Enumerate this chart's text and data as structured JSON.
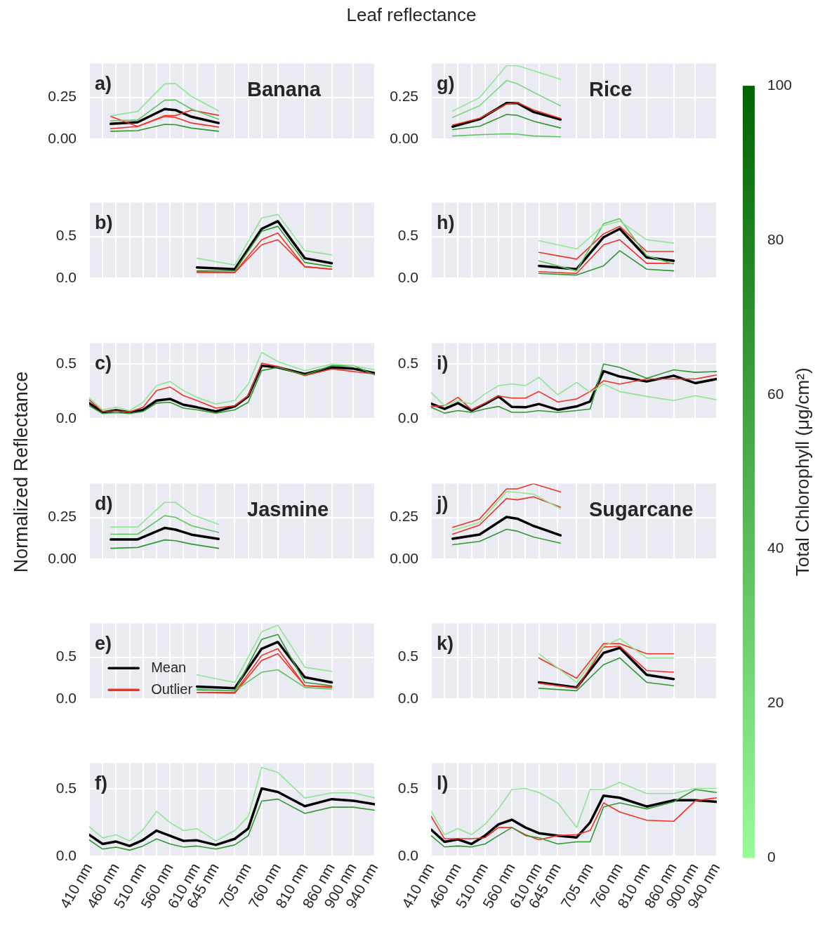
{
  "chart_data": [
    {
      "type": "line",
      "title": "Leaf reflectance",
      "clabel": "Total Chlorophyll (μg/cm²)",
      "clim": [
        0,
        100
      ],
      "cticks": [
        0,
        20,
        40,
        60,
        80,
        100
      ],
      "annotations": [
        "a)",
        "Banana"
      ],
      "xlim": [
        410,
        940
      ],
      "xticks": [
        410,
        435,
        460,
        485,
        510,
        535,
        560,
        585,
        610,
        645,
        680,
        705,
        730,
        760,
        810,
        860,
        900,
        940
      ],
      "ylim": [
        0,
        0.45
      ],
      "yticks": [
        {
          "value": 0,
          "label": "0.00"
        },
        {
          "value": 0.25,
          "label": "0.25"
        }
      ],
      "grid": true,
      "tick_labels": "y",
      "series": [
        {
          "color": "#8ee68e",
          "x": [
            450,
            500,
            550,
            570,
            600,
            650
          ],
          "values": [
            0.14,
            0.166,
            0.33,
            0.332,
            0.255,
            0.17
          ]
        },
        {
          "color": "#5cc45c",
          "x": [
            450,
            500,
            550,
            570,
            600,
            650
          ],
          "values": [
            0.11,
            0.115,
            0.233,
            0.234,
            0.18,
            0.12
          ]
        },
        {
          "color": "#2e9a2e",
          "x": [
            450,
            500,
            550,
            570,
            600,
            650
          ],
          "values": [
            0.048,
            0.052,
            0.089,
            0.087,
            0.067,
            0.048
          ]
        },
        {
          "color": "#f03020",
          "x": [
            450,
            500,
            550,
            570,
            600,
            650
          ],
          "values": [
            0.136,
            0.077,
            0.141,
            0.141,
            0.174,
            0.143
          ]
        },
        {
          "color": "#f03020",
          "x": [
            450,
            500,
            550,
            570,
            600,
            650
          ],
          "values": [
            0.063,
            0.077,
            0.136,
            0.13,
            0.097,
            0.073
          ]
        },
        {
          "color": "#000000",
          "x": [
            450,
            500,
            550,
            570,
            600,
            650
          ],
          "values": [
            0.092,
            0.102,
            0.18,
            0.174,
            0.134,
            0.097
          ]
        }
      ]
    },
    {
      "type": "line",
      "annotations": [
        "b)"
      ],
      "xlim": [
        410,
        940
      ],
      "xticks": [
        410,
        435,
        460,
        485,
        510,
        535,
        560,
        585,
        610,
        645,
        680,
        705,
        730,
        760,
        810,
        860,
        900,
        940
      ],
      "ylim": [
        0,
        0.9
      ],
      "yticks": [
        {
          "value": 0,
          "label": "0.0"
        },
        {
          "value": 0.5,
          "label": "0.5"
        }
      ],
      "grid": true,
      "tick_labels": "y",
      "series": [
        {
          "color": "#8ee68e",
          "x": [
            610,
            680,
            730,
            760,
            810,
            860
          ],
          "values": [
            0.24,
            0.16,
            0.72,
            0.76,
            0.33,
            0.28
          ]
        },
        {
          "color": "#2e9a2e",
          "x": [
            610,
            680,
            730,
            760,
            810,
            860
          ],
          "values": [
            0.09,
            0.09,
            0.56,
            0.62,
            0.19,
            0.14
          ]
        },
        {
          "color": "#f03020",
          "x": [
            610,
            680,
            730,
            760,
            810,
            860
          ],
          "values": [
            0.08,
            0.07,
            0.46,
            0.54,
            0.14,
            0.11
          ]
        },
        {
          "color": "#f03020",
          "x": [
            610,
            680,
            730,
            760,
            810,
            860
          ],
          "values": [
            0.07,
            0.07,
            0.4,
            0.46,
            0.14,
            0.11
          ]
        },
        {
          "color": "#000000",
          "x": [
            610,
            680,
            730,
            760,
            810,
            860
          ],
          "values": [
            0.13,
            0.11,
            0.59,
            0.68,
            0.24,
            0.18
          ]
        }
      ]
    },
    {
      "type": "line",
      "annotations": [
        "c)"
      ],
      "xlim": [
        410,
        940
      ],
      "xticks": [
        410,
        435,
        460,
        485,
        510,
        535,
        560,
        585,
        610,
        645,
        680,
        705,
        730,
        760,
        810,
        860,
        900,
        940
      ],
      "ylim": [
        0,
        0.69
      ],
      "yticks": [
        {
          "value": 0,
          "label": "0.0"
        },
        {
          "value": 0.5,
          "label": "0.5"
        }
      ],
      "grid": true,
      "tick_labels": "y",
      "series": [
        {
          "color": "#8ee68e",
          "x": [
            410,
            435,
            460,
            485,
            510,
            535,
            560,
            585,
            610,
            645,
            680,
            705,
            730,
            760,
            810,
            860,
            900,
            940
          ],
          "values": [
            0.19,
            0.083,
            0.106,
            0.076,
            0.151,
            0.303,
            0.341,
            0.258,
            0.197,
            0.136,
            0.167,
            0.318,
            0.606,
            0.523,
            0.44,
            0.5,
            0.485,
            0.447
          ]
        },
        {
          "color": "#2e9a2e",
          "x": [
            410,
            435,
            460,
            485,
            510,
            535,
            560,
            585,
            610,
            645,
            680,
            705,
            730,
            760,
            810,
            860,
            900,
            940
          ],
          "values": [
            0.121,
            0.049,
            0.058,
            0.049,
            0.068,
            0.144,
            0.151,
            0.099,
            0.083,
            0.053,
            0.083,
            0.151,
            0.44,
            0.47,
            0.401,
            0.485,
            0.485,
            0.401
          ]
        },
        {
          "color": "#f03020",
          "x": [
            410,
            435,
            460,
            485,
            510,
            535,
            560,
            585,
            610,
            645,
            680,
            705,
            730,
            760,
            810,
            860,
            900,
            940
          ],
          "values": [
            0.174,
            0.068,
            0.073,
            0.064,
            0.106,
            0.258,
            0.291,
            0.212,
            0.167,
            0.099,
            0.121,
            0.212,
            0.508,
            0.477,
            0.394,
            0.455,
            0.432,
            0.409
          ]
        },
        {
          "color": "#000000",
          "x": [
            410,
            435,
            460,
            485,
            510,
            535,
            560,
            585,
            610,
            645,
            680,
            705,
            730,
            760,
            810,
            860,
            900,
            940
          ],
          "values": [
            0.144,
            0.06,
            0.079,
            0.06,
            0.083,
            0.167,
            0.182,
            0.129,
            0.106,
            0.068,
            0.114,
            0.205,
            0.485,
            0.47,
            0.409,
            0.47,
            0.458,
            0.417
          ]
        }
      ]
    },
    {
      "type": "line",
      "ylabel": "Normalized Reflectance",
      "annotations": [
        "d)",
        "Jasmine"
      ],
      "xlim": [
        410,
        940
      ],
      "xticks": [
        410,
        435,
        460,
        485,
        510,
        535,
        560,
        585,
        610,
        645,
        680,
        705,
        730,
        760,
        810,
        860,
        900,
        940
      ],
      "ylim": [
        0,
        0.45
      ],
      "yticks": [
        {
          "value": 0,
          "label": "0.00"
        },
        {
          "value": 0.25,
          "label": "0.25"
        }
      ],
      "grid": true,
      "tick_labels": "y",
      "series": [
        {
          "color": "#8ee68e",
          "x": [
            450,
            500,
            550,
            570,
            600,
            650
          ],
          "values": [
            0.192,
            0.192,
            0.339,
            0.339,
            0.268,
            0.208
          ]
        },
        {
          "color": "#5cc45c",
          "x": [
            450,
            500,
            550,
            570,
            600,
            650
          ],
          "values": [
            0.15,
            0.15,
            0.26,
            0.25,
            0.2,
            0.16
          ]
        },
        {
          "color": "#2e9a2e",
          "x": [
            450,
            500,
            550,
            570,
            600,
            650
          ],
          "values": [
            0.066,
            0.071,
            0.116,
            0.111,
            0.091,
            0.066
          ]
        },
        {
          "color": "#000000",
          "x": [
            450,
            500,
            550,
            570,
            600,
            650
          ],
          "values": [
            0.119,
            0.119,
            0.187,
            0.177,
            0.147,
            0.122
          ]
        }
      ]
    },
    {
      "type": "line",
      "annotations": [
        "e)"
      ],
      "legend": "left",
      "xlim": [
        410,
        940
      ],
      "xticks": [
        410,
        435,
        460,
        485,
        510,
        535,
        560,
        585,
        610,
        645,
        680,
        705,
        730,
        760,
        810,
        860,
        900,
        940
      ],
      "ylim": [
        0,
        0.9
      ],
      "yticks": [
        {
          "value": 0,
          "label": "0.0"
        },
        {
          "value": 0.5,
          "label": "0.5"
        }
      ],
      "grid": true,
      "tick_labels": "y",
      "series": [
        {
          "color": "#8ee68e",
          "x": [
            610,
            680,
            730,
            760,
            810,
            860
          ],
          "values": [
            0.29,
            0.2,
            0.8,
            0.88,
            0.38,
            0.33
          ]
        },
        {
          "color": "#5cc45c",
          "x": [
            610,
            680,
            730,
            760,
            810,
            860
          ],
          "values": [
            0.12,
            0.1,
            0.32,
            0.35,
            0.14,
            0.12
          ]
        },
        {
          "color": "#2e9a2e",
          "x": [
            610,
            680,
            730,
            760,
            810,
            860
          ],
          "values": [
            0.11,
            0.1,
            0.71,
            0.77,
            0.2,
            0.16
          ]
        },
        {
          "color": "#f03020",
          "x": [
            610,
            680,
            730,
            760,
            810,
            860
          ],
          "values": [
            0.08,
            0.07,
            0.46,
            0.54,
            0.16,
            0.14
          ]
        },
        {
          "name": "Outlier",
          "color": "#f03020",
          "x": [
            610,
            680,
            730,
            760,
            810,
            860
          ],
          "values": [
            0.08,
            0.08,
            0.52,
            0.6,
            0.16,
            0.15
          ]
        },
        {
          "name": "Mean",
          "color": "#000000",
          "x": [
            610,
            680,
            730,
            760,
            810,
            860
          ],
          "values": [
            0.15,
            0.13,
            0.6,
            0.68,
            0.26,
            0.2
          ]
        }
      ]
    },
    {
      "type": "line",
      "annotations": [
        "f)"
      ],
      "xlim": [
        410,
        940
      ],
      "xticks": [
        {
          "value": 410,
          "label": "410 nm"
        },
        {
          "value": 435,
          "label": null
        },
        {
          "value": 460,
          "label": "460 nm"
        },
        {
          "value": 485,
          "label": null
        },
        {
          "value": 510,
          "label": "510 nm"
        },
        {
          "value": 535,
          "label": null
        },
        {
          "value": 560,
          "label": "560 nm"
        },
        {
          "value": 585,
          "label": null
        },
        {
          "value": 610,
          "label": "610 nm"
        },
        {
          "value": 645,
          "label": "645 nm"
        },
        {
          "value": 680,
          "label": null
        },
        {
          "value": 705,
          "label": "705 nm"
        },
        {
          "value": 730,
          "label": null
        },
        {
          "value": 760,
          "label": "760 nm"
        },
        {
          "value": 810,
          "label": "810 nm"
        },
        {
          "value": 860,
          "label": "860 nm"
        },
        {
          "value": 900,
          "label": "900 nm"
        },
        {
          "value": 940,
          "label": "940 nm"
        }
      ],
      "ylim": [
        0,
        0.69
      ],
      "yticks": [
        {
          "value": 0,
          "label": "0.0"
        },
        {
          "value": 0.5,
          "label": "0.5"
        }
      ],
      "grid": true,
      "series": [
        {
          "color": "#8ee68e",
          "x": [
            410,
            435,
            460,
            485,
            510,
            535,
            560,
            585,
            610,
            645,
            680,
            705,
            730,
            760,
            810,
            860,
            900,
            940
          ],
          "values": [
            0.22,
            0.136,
            0.159,
            0.114,
            0.197,
            0.334,
            0.25,
            0.19,
            0.205,
            0.114,
            0.19,
            0.295,
            0.659,
            0.621,
            0.432,
            0.47,
            0.47,
            0.432
          ]
        },
        {
          "color": "#2e9a2e",
          "x": [
            410,
            435,
            460,
            485,
            510,
            535,
            560,
            585,
            610,
            645,
            680,
            705,
            730,
            760,
            810,
            860,
            900,
            940
          ],
          "values": [
            0.121,
            0.053,
            0.068,
            0.045,
            0.076,
            0.129,
            0.091,
            0.068,
            0.076,
            0.053,
            0.084,
            0.152,
            0.409,
            0.424,
            0.318,
            0.364,
            0.364,
            0.341
          ]
        },
        {
          "color": "#000000",
          "x": [
            410,
            435,
            460,
            485,
            510,
            535,
            560,
            585,
            610,
            645,
            680,
            705,
            730,
            760,
            810,
            860,
            900,
            940
          ],
          "values": [
            0.159,
            0.091,
            0.109,
            0.076,
            0.121,
            0.19,
            0.152,
            0.114,
            0.118,
            0.084,
            0.129,
            0.205,
            0.503,
            0.477,
            0.371,
            0.424,
            0.412,
            0.386
          ]
        }
      ]
    },
    {
      "type": "line",
      "annotations": [
        "g)",
        "Rice"
      ],
      "xlim": [
        410,
        940
      ],
      "xticks": [
        410,
        435,
        460,
        485,
        510,
        535,
        560,
        585,
        610,
        645,
        680,
        705,
        730,
        760,
        810,
        860,
        900,
        940
      ],
      "ylim": [
        0,
        0.45
      ],
      "yticks": [
        {
          "value": 0,
          "label": "0.00"
        },
        {
          "value": 0.25,
          "label": "0.25"
        }
      ],
      "grid": true,
      "tick_labels": "y",
      "series": [
        {
          "color": "#8ee68e",
          "x": [
            450,
            500,
            550,
            570,
            600,
            650
          ],
          "values": [
            0.168,
            0.248,
            0.438,
            0.438,
            0.408,
            0.358
          ]
        },
        {
          "color": "#7ad87a",
          "x": [
            450,
            500,
            550,
            570,
            600,
            650
          ],
          "values": [
            0.13,
            0.2,
            0.35,
            0.33,
            0.28,
            0.2
          ]
        },
        {
          "color": "#2e9a2e",
          "x": [
            450,
            500,
            550,
            570,
            600,
            650
          ],
          "values": [
            0.058,
            0.078,
            0.148,
            0.143,
            0.108,
            0.068
          ]
        },
        {
          "color": "#5cc45c",
          "x": [
            450,
            500,
            550,
            570,
            600,
            650
          ],
          "values": [
            0.02,
            0.028,
            0.033,
            0.031,
            0.02,
            0.015
          ]
        },
        {
          "color": "#f03020",
          "x": [
            450,
            500,
            550,
            570,
            600,
            650
          ],
          "values": [
            0.085,
            0.125,
            0.21,
            0.22,
            0.175,
            0.125
          ]
        },
        {
          "color": "#000000",
          "x": [
            450,
            500,
            550,
            570,
            600,
            650
          ],
          "values": [
            0.076,
            0.12,
            0.216,
            0.216,
            0.163,
            0.118
          ]
        }
      ]
    },
    {
      "type": "line",
      "annotations": [
        "h)"
      ],
      "xlim": [
        410,
        940
      ],
      "xticks": [
        410,
        435,
        460,
        485,
        510,
        535,
        560,
        585,
        610,
        645,
        680,
        705,
        730,
        760,
        810,
        860,
        900,
        940
      ],
      "ylim": [
        0,
        0.9
      ],
      "yticks": [
        {
          "value": 0,
          "label": "0.0"
        },
        {
          "value": 0.5,
          "label": "0.5"
        }
      ],
      "grid": true,
      "tick_labels": "y",
      "series": [
        {
          "color": "#8ee68e",
          "x": [
            610,
            680,
            730,
            760,
            810,
            860
          ],
          "values": [
            0.45,
            0.35,
            0.63,
            0.68,
            0.46,
            0.42
          ]
        },
        {
          "color": "#5cc45c",
          "x": [
            610,
            680,
            730,
            760,
            810,
            860
          ],
          "values": [
            0.21,
            0.09,
            0.65,
            0.71,
            0.27,
            0.17
          ]
        },
        {
          "color": "#2e9a2e",
          "x": [
            610,
            680,
            730,
            760,
            810,
            860
          ],
          "values": [
            0.06,
            0.04,
            0.15,
            0.33,
            0.11,
            0.09
          ]
        },
        {
          "color": "#f03020",
          "x": [
            610,
            680,
            730,
            760,
            810,
            860
          ],
          "values": [
            0.31,
            0.23,
            0.53,
            0.62,
            0.32,
            0.32
          ]
        },
        {
          "color": "#f03020",
          "x": [
            610,
            680,
            730,
            760,
            810,
            860
          ],
          "values": [
            0.08,
            0.06,
            0.4,
            0.46,
            0.18,
            0.18
          ]
        },
        {
          "color": "#000000",
          "x": [
            610,
            680,
            730,
            760,
            810,
            860
          ],
          "values": [
            0.15,
            0.11,
            0.49,
            0.59,
            0.25,
            0.21
          ]
        }
      ]
    },
    {
      "type": "line",
      "annotations": [
        "i)"
      ],
      "xlim": [
        410,
        940
      ],
      "xticks": [
        410,
        435,
        460,
        485,
        510,
        535,
        560,
        585,
        610,
        645,
        680,
        705,
        730,
        760,
        810,
        860,
        900,
        940
      ],
      "ylim": [
        0,
        0.69
      ],
      "yticks": [
        {
          "value": 0,
          "label": "0.0"
        },
        {
          "value": 0.5,
          "label": "0.5"
        }
      ],
      "grid": true,
      "tick_labels": "y",
      "series": [
        {
          "color": "#8ee68e",
          "x": [
            410,
            435,
            460,
            485,
            510,
            535,
            560,
            585,
            610,
            645,
            680,
            705,
            730,
            760,
            810,
            860,
            900,
            940
          ],
          "values": [
            0.242,
            0.121,
            0.167,
            0.136,
            0.227,
            0.303,
            0.318,
            0.303,
            0.379,
            0.22,
            0.333,
            0.242,
            0.318,
            0.25,
            0.205,
            0.167,
            0.212,
            0.174
          ]
        },
        {
          "color": "#2e9a2e",
          "x": [
            410,
            435,
            460,
            485,
            510,
            535,
            560,
            585,
            610,
            645,
            680,
            705,
            730,
            760,
            810,
            860,
            900,
            940
          ],
          "values": [
            0.106,
            0.053,
            0.076,
            0.06,
            0.091,
            0.114,
            0.06,
            0.06,
            0.076,
            0.06,
            0.076,
            0.091,
            0.5,
            0.47,
            0.371,
            0.447,
            0.424,
            0.432
          ]
        },
        {
          "color": "#f03020",
          "x": [
            410,
            435,
            460,
            485,
            510,
            535,
            560,
            585,
            610,
            645,
            680,
            705,
            730,
            760,
            810,
            860,
            900,
            940
          ],
          "values": [
            0.114,
            0.121,
            0.197,
            0.083,
            0.144,
            0.209,
            0.19,
            0.19,
            0.25,
            0.155,
            0.182,
            0.25,
            0.348,
            0.318,
            0.364,
            0.364,
            0.364,
            0.401
          ]
        },
        {
          "color": "#000000",
          "x": [
            410,
            435,
            460,
            485,
            510,
            535,
            560,
            585,
            610,
            645,
            680,
            705,
            730,
            760,
            810,
            860,
            900,
            940
          ],
          "values": [
            0.139,
            0.091,
            0.144,
            0.076,
            0.136,
            0.205,
            0.109,
            0.106,
            0.136,
            0.083,
            0.114,
            0.159,
            0.436,
            0.386,
            0.341,
            0.394,
            0.326,
            0.364
          ]
        }
      ]
    },
    {
      "type": "line",
      "annotations": [
        "j)",
        "Sugarcane"
      ],
      "xlim": [
        410,
        940
      ],
      "xticks": [
        410,
        435,
        460,
        485,
        510,
        535,
        560,
        585,
        610,
        645,
        680,
        705,
        730,
        760,
        810,
        860,
        900,
        940
      ],
      "ylim": [
        0,
        0.45
      ],
      "yticks": [
        {
          "value": 0,
          "label": "0.00"
        },
        {
          "value": 0.25,
          "label": "0.25"
        }
      ],
      "grid": true,
      "tick_labels": "y",
      "series": [
        {
          "color": "#8ee68e",
          "x": [
            450,
            500,
            550,
            570,
            600,
            650
          ],
          "values": [
            0.173,
            0.219,
            0.403,
            0.398,
            0.388,
            0.301
          ]
        },
        {
          "color": "#2e9a2e",
          "x": [
            450,
            500,
            550,
            570,
            600,
            650
          ],
          "values": [
            0.087,
            0.107,
            0.179,
            0.168,
            0.133,
            0.097
          ]
        },
        {
          "color": "#f03020",
          "x": [
            450,
            500,
            550,
            570,
            600,
            650
          ],
          "values": [
            0.191,
            0.24,
            0.419,
            0.419,
            0.45,
            0.401
          ]
        },
        {
          "color": "#f03020",
          "x": [
            450,
            500,
            550,
            570,
            600,
            650
          ],
          "values": [
            0.15,
            0.204,
            0.362,
            0.354,
            0.372,
            0.311
          ]
        },
        {
          "color": "#000000",
          "x": [
            450,
            500,
            550,
            570,
            600,
            650
          ],
          "values": [
            0.123,
            0.148,
            0.252,
            0.242,
            0.199,
            0.143
          ]
        }
      ]
    },
    {
      "type": "line",
      "annotations": [
        "k)"
      ],
      "xlim": [
        410,
        940
      ],
      "xticks": [
        410,
        435,
        460,
        485,
        510,
        535,
        560,
        585,
        610,
        645,
        680,
        705,
        730,
        760,
        810,
        860,
        900,
        940
      ],
      "ylim": [
        0,
        0.9
      ],
      "yticks": [
        {
          "value": 0,
          "label": "0.0"
        },
        {
          "value": 0.5,
          "label": "0.5"
        }
      ],
      "grid": true,
      "tick_labels": "y",
      "series": [
        {
          "color": "#8ee68e",
          "x": [
            610,
            680,
            730,
            760,
            810,
            860
          ],
          "values": [
            0.54,
            0.2,
            0.63,
            0.72,
            0.49,
            0.49
          ]
        },
        {
          "color": "#2e9a2e",
          "x": [
            610,
            680,
            730,
            760,
            810,
            860
          ],
          "values": [
            0.13,
            0.1,
            0.41,
            0.49,
            0.2,
            0.16
          ]
        },
        {
          "color": "#f03020",
          "x": [
            610,
            680,
            730,
            760,
            810,
            860
          ],
          "values": [
            0.49,
            0.25,
            0.66,
            0.66,
            0.54,
            0.54
          ]
        },
        {
          "color": "#f03020",
          "x": [
            610,
            680,
            730,
            760,
            810,
            860
          ],
          "values": [
            0.19,
            0.13,
            0.62,
            0.63,
            0.34,
            0.32
          ]
        },
        {
          "color": "#000000",
          "x": [
            610,
            680,
            730,
            760,
            810,
            860
          ],
          "values": [
            0.2,
            0.14,
            0.55,
            0.61,
            0.29,
            0.24
          ]
        }
      ]
    },
    {
      "type": "line",
      "annotations": [
        "l)"
      ],
      "xlim": [
        410,
        940
      ],
      "xticks": [
        {
          "value": 410,
          "label": "410 nm"
        },
        {
          "value": 435,
          "label": null
        },
        {
          "value": 460,
          "label": "460 nm"
        },
        {
          "value": 485,
          "label": null
        },
        {
          "value": 510,
          "label": "510 nm"
        },
        {
          "value": 535,
          "label": null
        },
        {
          "value": 560,
          "label": "560 nm"
        },
        {
          "value": 585,
          "label": null
        },
        {
          "value": 610,
          "label": "610 nm"
        },
        {
          "value": 645,
          "label": "645 nm"
        },
        {
          "value": 680,
          "label": null
        },
        {
          "value": 705,
          "label": "705 nm"
        },
        {
          "value": 730,
          "label": null
        },
        {
          "value": 760,
          "label": "760 nm"
        },
        {
          "value": 810,
          "label": "810 nm"
        },
        {
          "value": 860,
          "label": "860 nm"
        },
        {
          "value": 900,
          "label": "900 nm"
        },
        {
          "value": 940,
          "label": "940 nm"
        }
      ],
      "ylim": [
        0,
        0.69
      ],
      "yticks": [
        {
          "value": 0,
          "label": "0.0"
        },
        {
          "value": 0.5,
          "label": "0.5"
        }
      ],
      "grid": true,
      "series": [
        {
          "color": "#8ee68e",
          "x": [
            410,
            435,
            460,
            485,
            510,
            535,
            560,
            585,
            610,
            645,
            680,
            705,
            730,
            760,
            810,
            860,
            900,
            940
          ],
          "values": [
            0.335,
            0.16,
            0.206,
            0.16,
            0.236,
            0.351,
            0.495,
            0.503,
            0.473,
            0.396,
            0.213,
            0.495,
            0.495,
            0.548,
            0.465,
            0.465,
            0.503,
            0.503
          ]
        },
        {
          "color": "#2e9a2e",
          "x": [
            410,
            435,
            460,
            485,
            510,
            535,
            560,
            585,
            610,
            645,
            680,
            705,
            730,
            760,
            810,
            860,
            900,
            940
          ],
          "values": [
            0.153,
            0.069,
            0.076,
            0.069,
            0.091,
            0.153,
            0.213,
            0.153,
            0.137,
            0.091,
            0.107,
            0.107,
            0.366,
            0.396,
            0.351,
            0.404,
            0.495,
            0.473
          ]
        },
        {
          "color": "#f03020",
          "x": [
            410,
            435,
            460,
            485,
            510,
            535,
            560,
            585,
            610,
            645,
            680,
            705,
            730,
            760,
            810,
            860,
            900,
            940
          ],
          "values": [
            0.297,
            0.13,
            0.13,
            0.13,
            0.137,
            0.213,
            0.213,
            0.16,
            0.122,
            0.153,
            0.16,
            0.191,
            0.396,
            0.328,
            0.267,
            0.259,
            0.411,
            0.434
          ]
        },
        {
          "color": "#000000",
          "x": [
            410,
            435,
            460,
            485,
            510,
            535,
            560,
            585,
            610,
            645,
            680,
            705,
            730,
            760,
            810,
            860,
            900,
            940
          ],
          "values": [
            0.198,
            0.107,
            0.125,
            0.091,
            0.153,
            0.236,
            0.271,
            0.213,
            0.171,
            0.153,
            0.14,
            0.251,
            0.45,
            0.434,
            0.369,
            0.415,
            0.415,
            0.404
          ]
        }
      ]
    }
  ]
}
